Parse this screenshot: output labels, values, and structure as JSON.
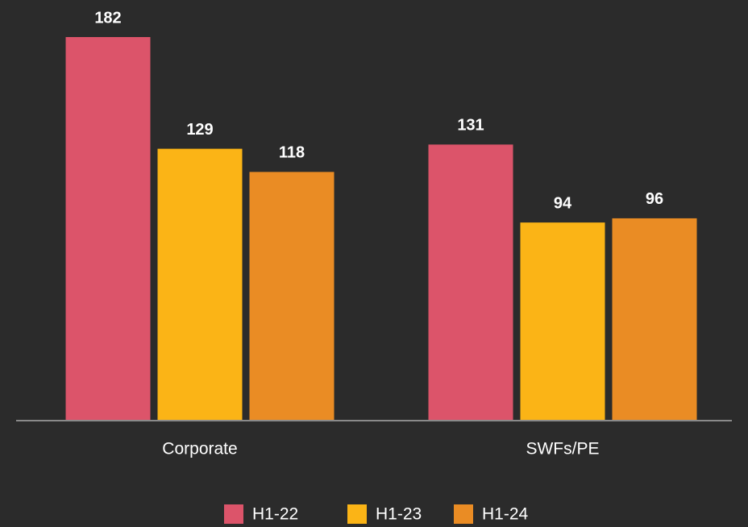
{
  "chart_data": {
    "type": "bar",
    "categories": [
      "Corporate",
      "SWFs/PE"
    ],
    "series": [
      {
        "name": "H1-22",
        "color": "#dc546a",
        "values": [
          182,
          131
        ]
      },
      {
        "name": "H1-23",
        "color": "#fbb416",
        "values": [
          129,
          94
        ]
      },
      {
        "name": "H1-24",
        "color": "#ea8c24",
        "values": [
          118,
          96
        ]
      }
    ],
    "ylim": [
      0,
      182
    ],
    "legend": "bottom"
  }
}
